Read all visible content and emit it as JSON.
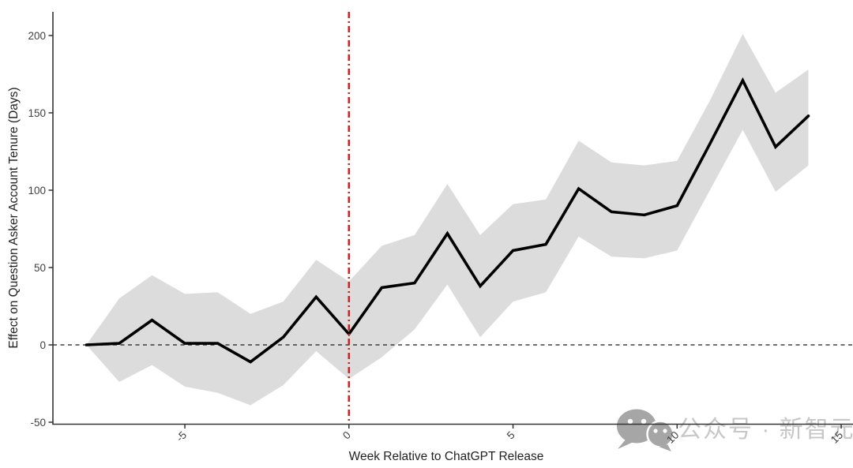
{
  "chart_data": {
    "type": "line",
    "title": "",
    "xlabel": "Week Relative to ChatGPT Release",
    "ylabel": "Effect on Question Asker Account Tenure (Days)",
    "x": [
      -8,
      -7,
      -6,
      -5,
      -4,
      -3,
      -2,
      -1,
      0,
      1,
      2,
      3,
      4,
      5,
      6,
      7,
      8,
      9,
      10,
      11,
      12,
      13,
      14
    ],
    "series": [
      {
        "name": "effect-on-account-tenure",
        "values": [
          0,
          1,
          16,
          1,
          1,
          -11,
          5,
          31,
          7,
          37,
          40,
          72,
          38,
          61,
          65,
          101,
          86,
          84,
          90,
          130,
          171,
          128,
          148
        ]
      }
    ],
    "band": {
      "name": "confidence-interval",
      "upper": [
        0,
        30,
        45,
        33,
        34,
        20,
        28,
        55,
        41,
        64,
        71,
        104,
        71,
        91,
        94,
        132,
        118,
        116,
        119,
        158,
        201,
        163,
        178
      ],
      "lower": [
        0,
        -24,
        -13,
        -27,
        -31,
        -39,
        -26,
        -4,
        -22,
        -8,
        10,
        39,
        5,
        28,
        34,
        70,
        57,
        56,
        61,
        100,
        139,
        99,
        116
      ]
    },
    "x_ticks": [
      -5,
      0,
      5,
      10,
      15
    ],
    "y_ticks": [
      200,
      150,
      100,
      50,
      0,
      -50
    ],
    "xlim": [
      -9,
      15.4
    ],
    "ylim": [
      -51,
      215
    ],
    "grid": "off",
    "legend": "none",
    "reference_lines": {
      "vertical_x": 0,
      "vertical_style": "dash-dot",
      "horizontal_y": 0,
      "horizontal_style": "dashed"
    },
    "colors": {
      "line": "#000000",
      "band": "#dcdcdc",
      "reference_red": "#cc2424",
      "zero_line": "#1a1a1a",
      "axis": "#333333",
      "tick_text": "#404040",
      "watermark_text": "#c7c7c7",
      "watermark_icon": "#a6a6a6"
    }
  },
  "watermark": {
    "icon": "wechat-icon",
    "text": "公众号 · 新智元"
  }
}
